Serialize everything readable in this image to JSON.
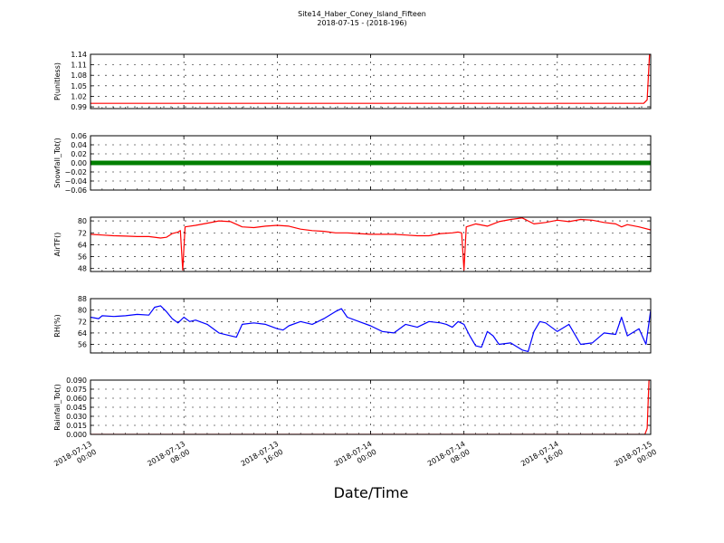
{
  "chart_data": {
    "type": "line",
    "title": "Site14_Haber_Coney_Island_Fifteen",
    "subtitle": "2018-07-15 - (2018-196)",
    "xlabel": "Date/Time",
    "x_range": [
      "2018-07-13 00:00",
      "2018-07-15 00:00"
    ],
    "x_ticks": [
      {
        "t": 0,
        "line1": "2018-07-13",
        "line2": "00:00"
      },
      {
        "t": 8,
        "line1": "2018-07-13",
        "line2": "08:00"
      },
      {
        "t": 16,
        "line1": "2018-07-13",
        "line2": "16:00"
      },
      {
        "t": 24,
        "line1": "2018-07-14",
        "line2": "00:00"
      },
      {
        "t": 32,
        "line1": "2018-07-14",
        "line2": "08:00"
      },
      {
        "t": 40,
        "line1": "2018-07-14",
        "line2": "16:00"
      },
      {
        "t": 48,
        "line1": "2018-07-15",
        "line2": "00:00"
      }
    ],
    "grid": true,
    "panels": [
      {
        "ylabel": "P(unitless)",
        "color": "#ff0000",
        "ylim": [
          0.985,
          1.14
        ],
        "yticks": [
          0.99,
          1.02,
          1.05,
          1.08,
          1.11,
          1.14
        ],
        "tick_labels": [
          "0.99",
          "1.02",
          "1.05",
          "1.08",
          "1.11",
          "1.14"
        ],
        "style": "line",
        "points": [
          [
            0,
            1.0
          ],
          [
            47.4,
            1.0
          ],
          [
            47.7,
            1.01
          ],
          [
            47.9,
            1.14
          ],
          [
            48,
            1.14
          ]
        ]
      },
      {
        "ylabel": "Snowfall_Tot()",
        "color": "#007f00",
        "ylim": [
          -0.06,
          0.06
        ],
        "yticks": [
          -0.06,
          -0.04,
          -0.02,
          0.0,
          0.02,
          0.04,
          0.06
        ],
        "tick_labels": [
          "−0.06",
          "−0.04",
          "−0.02",
          "0.00",
          "0.02",
          "0.04",
          "0.06"
        ],
        "style": "markers",
        "points": [
          [
            0,
            0
          ],
          [
            48,
            0
          ]
        ]
      },
      {
        "ylabel": "AirTF()",
        "color": "#ff0000",
        "ylim": [
          46,
          82.5
        ],
        "yticks": [
          48,
          56,
          64,
          72,
          80
        ],
        "tick_labels": [
          "48",
          "56",
          "64",
          "72",
          "80"
        ],
        "style": "line",
        "points": [
          [
            0,
            71
          ],
          [
            1,
            70.5
          ],
          [
            2,
            70
          ],
          [
            3,
            69.8
          ],
          [
            4,
            69.5
          ],
          [
            5,
            69.5
          ],
          [
            6,
            68.5
          ],
          [
            6.5,
            69
          ],
          [
            7,
            71.5
          ],
          [
            7.5,
            72.5
          ],
          [
            7.7,
            73.5
          ],
          [
            7.9,
            47
          ],
          [
            8.1,
            76
          ],
          [
            9,
            77
          ],
          [
            10,
            78.5
          ],
          [
            11,
            80
          ],
          [
            12,
            79.5
          ],
          [
            13,
            76
          ],
          [
            14,
            75.5
          ],
          [
            15,
            76.5
          ],
          [
            16,
            77
          ],
          [
            17,
            76.5
          ],
          [
            18,
            74.5
          ],
          [
            19,
            73.5
          ],
          [
            20,
            73
          ],
          [
            21,
            72
          ],
          [
            22,
            72
          ],
          [
            23,
            71.5
          ],
          [
            24,
            71
          ],
          [
            25,
            71
          ],
          [
            26,
            71
          ],
          [
            27,
            70.5
          ],
          [
            28,
            70
          ],
          [
            29,
            70
          ],
          [
            30,
            71.5
          ],
          [
            31,
            72
          ],
          [
            31.5,
            72.5
          ],
          [
            31.8,
            72
          ],
          [
            32.0,
            47
          ],
          [
            32.2,
            76
          ],
          [
            33,
            78
          ],
          [
            34,
            76.5
          ],
          [
            35,
            79.5
          ],
          [
            36,
            81
          ],
          [
            37,
            82
          ],
          [
            38,
            78
          ],
          [
            39,
            79
          ],
          [
            40,
            80.5
          ],
          [
            41,
            79.5
          ],
          [
            42,
            81
          ],
          [
            43,
            80.5
          ],
          [
            44,
            79
          ],
          [
            45,
            78
          ],
          [
            45.5,
            76
          ],
          [
            46,
            77.5
          ],
          [
            47,
            76
          ],
          [
            48,
            74
          ]
        ]
      },
      {
        "ylabel": "RH(%)",
        "color": "#0000ff",
        "ylim": [
          50,
          88
        ],
        "yticks": [
          56,
          64,
          72,
          80,
          88
        ],
        "tick_labels": [
          "56",
          "64",
          "72",
          "80",
          "88"
        ],
        "style": "line",
        "points": [
          [
            0,
            75
          ],
          [
            0.7,
            74
          ],
          [
            1,
            76
          ],
          [
            2,
            75.5
          ],
          [
            3,
            76
          ],
          [
            4,
            77
          ],
          [
            5,
            76.5
          ],
          [
            5.5,
            82
          ],
          [
            6,
            83
          ],
          [
            6.5,
            79
          ],
          [
            7,
            74
          ],
          [
            7.5,
            71
          ],
          [
            8,
            75
          ],
          [
            8.5,
            72
          ],
          [
            9,
            73
          ],
          [
            10,
            70
          ],
          [
            11,
            64
          ],
          [
            12,
            62
          ],
          [
            12.5,
            61
          ],
          [
            13,
            70
          ],
          [
            14,
            71
          ],
          [
            15,
            70
          ],
          [
            16,
            67
          ],
          [
            16.5,
            66
          ],
          [
            17,
            69
          ],
          [
            18,
            72
          ],
          [
            19,
            70
          ],
          [
            20,
            74
          ],
          [
            21,
            79
          ],
          [
            21.5,
            81
          ],
          [
            22,
            75
          ],
          [
            23,
            72
          ],
          [
            24,
            69
          ],
          [
            25,
            65
          ],
          [
            26,
            64
          ],
          [
            27,
            70
          ],
          [
            28,
            68
          ],
          [
            29,
            72
          ],
          [
            30,
            71
          ],
          [
            30.5,
            70
          ],
          [
            31,
            68
          ],
          [
            31.5,
            72
          ],
          [
            32,
            70
          ],
          [
            32.5,
            62
          ],
          [
            33,
            55
          ],
          [
            33.5,
            54
          ],
          [
            34,
            65
          ],
          [
            34.5,
            62
          ],
          [
            35,
            56
          ],
          [
            36,
            57
          ],
          [
            37,
            52
          ],
          [
            37.5,
            51
          ],
          [
            38,
            65
          ],
          [
            38.5,
            72
          ],
          [
            39,
            71
          ],
          [
            40,
            65
          ],
          [
            41,
            70
          ],
          [
            42,
            56
          ],
          [
            43,
            57
          ],
          [
            44,
            64
          ],
          [
            45,
            63
          ],
          [
            45.5,
            75
          ],
          [
            46,
            62
          ],
          [
            47,
            67
          ],
          [
            47.6,
            56
          ],
          [
            48,
            80
          ]
        ]
      },
      {
        "ylabel": "Rainfall_Tot()",
        "color": "#ff0000",
        "ylim": [
          0,
          0.09
        ],
        "yticks": [
          0.0,
          0.015,
          0.03,
          0.045,
          0.06,
          0.075,
          0.09
        ],
        "tick_labels": [
          "0.000",
          "0.015",
          "0.030",
          "0.045",
          "0.060",
          "0.075",
          "0.090"
        ],
        "style": "line",
        "points": [
          [
            0,
            0
          ],
          [
            47.5,
            0
          ],
          [
            47.7,
            0.01
          ],
          [
            47.85,
            0.09
          ],
          [
            48,
            0.09
          ]
        ]
      }
    ]
  }
}
